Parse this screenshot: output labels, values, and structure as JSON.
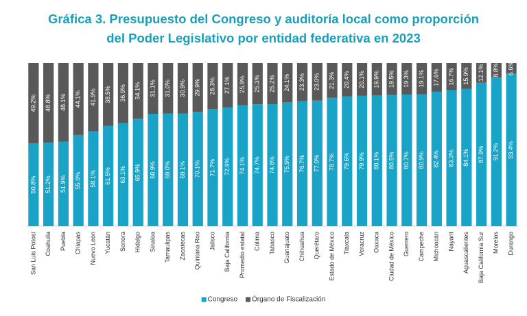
{
  "chart_data": {
    "type": "stacked-bar",
    "title": "Gráfica 3. Presupuesto del Congreso y auditoría local como proporción\ndel Poder Legislativo por entidad federativa en 2023",
    "categories": [
      "San Luis Potosí",
      "Coahuila",
      "Puebla",
      "Chiapas",
      "Nuevo León",
      "Yucatán",
      "Sonora",
      "Hidalgo",
      "Sinaloa",
      "Tamaulipas",
      "Zacatecas",
      "Quintana Roo",
      "Jalisco",
      "Baja California",
      "Promedio estatal",
      "Colima",
      "Tabasco",
      "Guanajuato",
      "Chihuahua",
      "Querétaro",
      "Estado de México",
      "Tlaxcala",
      "Veracruz",
      "Oaxaca",
      "Ciudad de México",
      "Guerrero",
      "Campeche",
      "Michoacán",
      "Nayarit",
      "Aguascalientes",
      "Baja California Sur",
      "Morelos",
      "Durango"
    ],
    "ylim": [
      0,
      100
    ],
    "legend": "bottom",
    "series": [
      {
        "name": "Congreso",
        "color": "#19a3c6",
        "values": [
          50.8,
          51.2,
          51.9,
          55.9,
          58.1,
          61.5,
          63.1,
          65.9,
          68.9,
          69.0,
          69.1,
          70.1,
          71.7,
          72.9,
          74.1,
          74.7,
          74.8,
          75.9,
          76.7,
          77.0,
          78.7,
          79.6,
          79.9,
          80.1,
          80.5,
          80.7,
          80.9,
          82.4,
          83.3,
          84.1,
          87.9,
          91.2,
          93.4
        ],
        "value_labels": [
          "50.8%",
          "51.2%",
          "51.9%",
          "55.9%",
          "58.1%",
          "61.5%",
          "63.1%",
          "65.9%",
          "68.9%",
          "69.0%",
          "69.1%",
          "70.1%",
          "71.7%",
          "72.9%",
          "74.1%",
          "74.7%",
          "74.8%",
          "75.9%",
          "76.7%",
          "77.0%",
          "78.7%",
          "79.6%",
          "79.9%",
          "80.1%",
          "80.5%",
          "80.7%",
          "80.9%",
          "82.4%",
          "83.3%",
          "84.1%",
          "87.9%",
          "91.2%",
          "93.4%"
        ]
      },
      {
        "name": "Órgano de Fiscalización",
        "color": "#595959",
        "values": [
          49.2,
          48.8,
          48.1,
          44.1,
          41.9,
          38.5,
          36.9,
          34.1,
          31.1,
          31.0,
          30.9,
          29.9,
          28.3,
          27.1,
          25.9,
          25.3,
          25.2,
          24.1,
          23.3,
          23.0,
          21.3,
          20.4,
          20.1,
          19.9,
          19.5,
          19.3,
          19.1,
          17.6,
          16.7,
          15.9,
          12.1,
          8.8,
          6.6
        ],
        "value_labels": [
          "49.2%",
          "48.8%",
          "48.1%",
          "44.1%",
          "41.9%",
          "38.5%",
          "36.9%",
          "34.1%",
          "31.1%",
          "31.0%",
          "30.9%",
          "29.9%",
          "28.3%",
          "27.1%",
          "25.9%",
          "25.3%",
          "25.2%",
          "24.1%",
          "23.3%",
          "23.0%",
          "21.3%",
          "20.4%",
          "20.1%",
          "19.9%",
          "19.5%",
          "19.3%",
          "19.1%",
          "17.6%",
          "16.7%",
          "15.9%",
          "12.1%",
          "8.8%",
          "6.6%"
        ]
      }
    ]
  }
}
